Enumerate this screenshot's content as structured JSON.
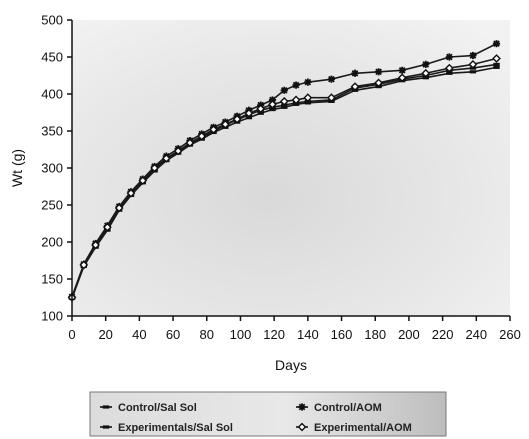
{
  "chart_data": {
    "type": "line",
    "xlabel": "Days",
    "ylabel": "Wt (g)",
    "xlim": [
      0,
      260
    ],
    "ylim": [
      100,
      500
    ],
    "xticks": [
      0,
      20,
      40,
      60,
      80,
      100,
      120,
      140,
      160,
      180,
      200,
      220,
      240,
      260
    ],
    "yticks": [
      100,
      150,
      200,
      250,
      300,
      350,
      400,
      450,
      500
    ],
    "grid": false,
    "legend_position": "bottom",
    "x": [
      0,
      7,
      14,
      21,
      28,
      35,
      42,
      49,
      56,
      63,
      70,
      77,
      84,
      91,
      98,
      105,
      112,
      119,
      126,
      133,
      140,
      154,
      168,
      182,
      196,
      210,
      224,
      238,
      252
    ],
    "series": [
      {
        "name": "Control/Sal Sol",
        "marker": "dash",
        "values": [
          125,
          168,
          195,
          218,
          245,
          265,
          282,
          298,
          312,
          322,
          333,
          341,
          350,
          358,
          365,
          372,
          378,
          382,
          385,
          388,
          390,
          392,
          408,
          413,
          420,
          425,
          432,
          435,
          440
        ]
      },
      {
        "name": "Control/AOM",
        "marker": "star",
        "values": [
          126,
          170,
          198,
          222,
          248,
          268,
          285,
          302,
          316,
          326,
          337,
          346,
          355,
          362,
          370,
          378,
          385,
          392,
          405,
          412,
          416,
          420,
          428,
          430,
          432,
          440,
          450,
          452,
          468
        ]
      },
      {
        "name": "Experimental/Sal Sol",
        "marker": "dash",
        "values": [
          124,
          167,
          193,
          216,
          243,
          263,
          280,
          296,
          310,
          320,
          331,
          339,
          348,
          355,
          362,
          368,
          374,
          379,
          382,
          386,
          388,
          390,
          405,
          410,
          418,
          422,
          428,
          430,
          436
        ]
      },
      {
        "name": "Experimental/AOM",
        "marker": "diamond",
        "values": [
          125,
          169,
          196,
          220,
          246,
          266,
          283,
          300,
          313,
          323,
          334,
          343,
          352,
          359,
          366,
          374,
          380,
          386,
          390,
          392,
          395,
          395,
          410,
          415,
          422,
          428,
          435,
          440,
          448
        ]
      }
    ]
  },
  "legend": {
    "items": [
      "Control/Sal Sol",
      "Control/AOM",
      "Experimentals/Sal Sol",
      "Experimental/AOM"
    ]
  }
}
